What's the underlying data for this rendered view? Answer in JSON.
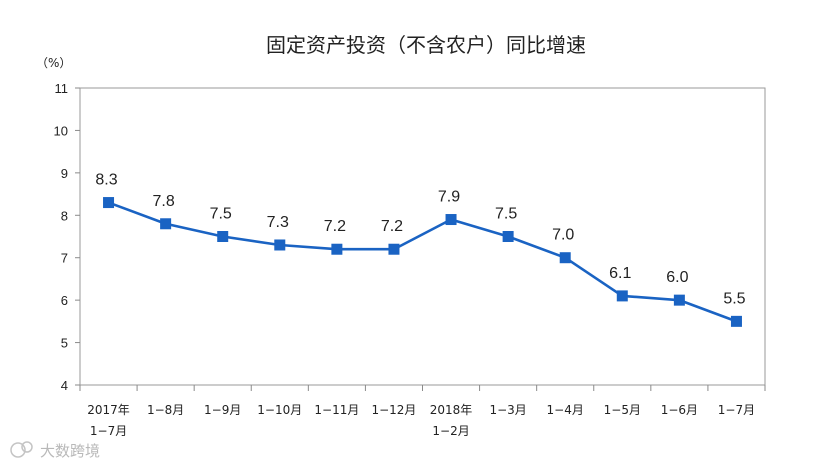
{
  "chart_data": {
    "type": "line",
    "title": "固定资产投资（不含农户）同比增速",
    "unit_label": "（%）",
    "ylim": [
      4,
      11
    ],
    "yticks": [
      "4",
      "5",
      "6",
      "7",
      "8",
      "9",
      "10",
      "11"
    ],
    "categories": [
      [
        "2017年",
        "1−7月"
      ],
      [
        "1−8月"
      ],
      [
        "1−9月"
      ],
      [
        "1−10月"
      ],
      [
        "1−11月"
      ],
      [
        "1−12月"
      ],
      [
        "2018年",
        "1−2月"
      ],
      [
        "1−3月"
      ],
      [
        "1−4月"
      ],
      [
        "1−5月"
      ],
      [
        "1−6月"
      ],
      [
        "1−7月"
      ]
    ],
    "series": [
      {
        "values": [
          8.3,
          7.8,
          7.5,
          7.3,
          7.2,
          7.2,
          7.9,
          7.5,
          7.0,
          6.1,
          6.0,
          5.5
        ],
        "labels": [
          "8.3",
          "7.8",
          "7.5",
          "7.3",
          "7.2",
          "7.2",
          "7.9",
          "7.5",
          "7.0",
          "6.1",
          "6.0",
          "5.5"
        ],
        "color": "#1a63c3",
        "marker": "square"
      }
    ],
    "grid": false,
    "legend": "none"
  },
  "watermark": "大数跨境",
  "colors": {
    "line": "#1a63c3",
    "axis": "#8a8a8a",
    "frame": "#9a9a9a"
  }
}
